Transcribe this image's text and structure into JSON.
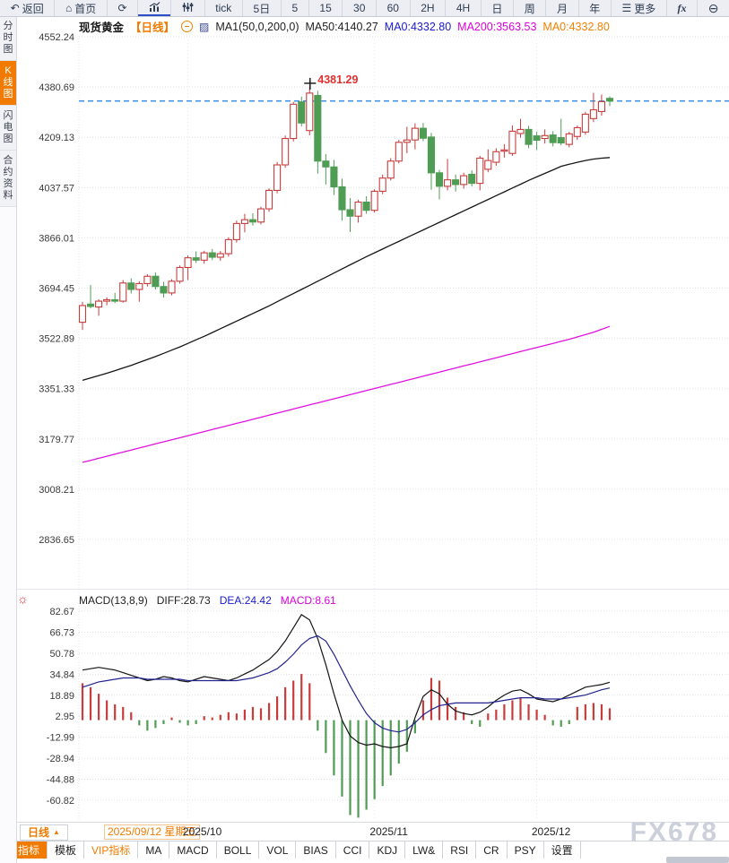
{
  "toolbar": {
    "buttons": [
      {
        "name": "back-button",
        "icon": "↶",
        "icon_name": "back-arrow-icon",
        "label": "返回"
      },
      {
        "name": "home-button",
        "icon": "⌂",
        "icon_name": "home-icon",
        "label": "首页"
      },
      {
        "name": "refresh-button",
        "icon": "⟳",
        "icon_name": "refresh-icon",
        "label": ""
      },
      {
        "name": "chart-type-button",
        "svg": "bars",
        "icon_name": "bar-chart-icon",
        "label": "",
        "active": true
      },
      {
        "name": "indicator-tool-button",
        "svg": "sliders",
        "icon_name": "sliders-icon",
        "label": ""
      },
      {
        "name": "tick-button",
        "label": "tick"
      },
      {
        "name": "period-5d-button",
        "label": "5日"
      },
      {
        "name": "period-5m-button",
        "label": "5"
      },
      {
        "name": "period-15m-button",
        "label": "15"
      },
      {
        "name": "period-30m-button",
        "label": "30"
      },
      {
        "name": "period-60m-button",
        "label": "60"
      },
      {
        "name": "period-2h-button",
        "label": "2H"
      },
      {
        "name": "period-4h-button",
        "label": "4H"
      },
      {
        "name": "period-day-button",
        "label": "日"
      },
      {
        "name": "period-week-button",
        "label": "周"
      },
      {
        "name": "period-month-button",
        "label": "月"
      },
      {
        "name": "period-year-button",
        "label": "年"
      },
      {
        "name": "more-button",
        "icon": "☰",
        "icon_name": "menu-icon",
        "label": "更多"
      },
      {
        "name": "fx-button",
        "label": "fx"
      },
      {
        "name": "zoom-out-button",
        "icon": "⊖",
        "icon_name": "zoom-out-icon",
        "label": ""
      }
    ]
  },
  "sidebar": {
    "items": [
      {
        "name": "sidebar-item-time-chart",
        "label": "分时图",
        "active": false
      },
      {
        "name": "sidebar-item-kline-chart",
        "label": "K线图",
        "active": true
      },
      {
        "name": "sidebar-item-lightning-chart",
        "label": "闪电图",
        "active": false
      },
      {
        "name": "sidebar-item-contract-info",
        "label": "合约资料",
        "active": false
      }
    ]
  },
  "legend": {
    "symbol": "现货黄金",
    "period": "【日线】",
    "ma_params": "MA1(50,0,200,0)",
    "ma50": "MA50:4140.27",
    "ma0_blue": "MA0:4332.80",
    "ma200": "MA200:3563.53",
    "ma0_orange": "MA0:4332.80"
  },
  "macd_legend": {
    "params": "MACD(13,8,9)",
    "diff": "DIFF:28.73",
    "dea": "DEA:24.42",
    "macd": "MACD:8.61"
  },
  "date_row": {
    "period_button": "日线",
    "period_arrow": "▲",
    "first_date": "2025/09/12 星期五"
  },
  "bottom_tabs": [
    {
      "name": "tab-indicator",
      "label": "指标",
      "style": "active"
    },
    {
      "name": "tab-template",
      "label": "模板",
      "style": "plain"
    },
    {
      "name": "tab-vip-indicator",
      "label": "VIP指标",
      "style": "vip"
    },
    {
      "name": "tab-ma",
      "label": "MA",
      "style": "plain"
    },
    {
      "name": "tab-macd",
      "label": "MACD",
      "style": "plain"
    },
    {
      "name": "tab-boll",
      "label": "BOLL",
      "style": "plain"
    },
    {
      "name": "tab-vol",
      "label": "VOL",
      "style": "plain"
    },
    {
      "name": "tab-bias",
      "label": "BIAS",
      "style": "plain"
    },
    {
      "name": "tab-cci",
      "label": "CCI",
      "style": "plain"
    },
    {
      "name": "tab-kdj",
      "label": "KDJ",
      "style": "plain"
    },
    {
      "name": "tab-lw",
      "label": "LW&",
      "style": "plain"
    },
    {
      "name": "tab-rsi",
      "label": "RSI",
      "style": "plain"
    },
    {
      "name": "tab-cr",
      "label": "CR",
      "style": "plain"
    },
    {
      "name": "tab-psy",
      "label": "PSY",
      "style": "plain"
    },
    {
      "name": "tab-settings",
      "label": "设置",
      "style": "plain"
    }
  ],
  "watermark": "FX678",
  "colors": {
    "up": "#c83c3c",
    "down": "#4f9d55",
    "price_line": "#1d7ce0",
    "ma50": "#151515",
    "ma200": "#e012e0",
    "diff": "#151515",
    "dea": "#23238f",
    "accent_orange": "#f07b00",
    "grid": "#dfe0e6",
    "axis_text": "#3a3a3a",
    "peak_label": "#e03030"
  },
  "chart_data": {
    "type": "candlestick",
    "symbol": "现货黄金",
    "period": "日线",
    "y_axis": {
      "labels": [
        "4552.24",
        "4380.69",
        "4209.13",
        "4037.57",
        "3866.01",
        "3694.45",
        "3522.89",
        "3351.33",
        "3179.77",
        "3008.21",
        "2836.65"
      ]
    },
    "x_axis": {
      "ticks": [
        {
          "label": "2025/10",
          "index": 14
        },
        {
          "label": "2025/11",
          "index": 37
        },
        {
          "label": "2025/12",
          "index": 57
        }
      ]
    },
    "current_price": 4332.8,
    "peak": {
      "label": "4381.29",
      "value": 4381.29,
      "index": 29
    },
    "ma": {
      "ma50_last": 4140.27,
      "ma200_last": 3563.53
    },
    "candles": [
      [
        3578,
        3648,
        3552,
        3635
      ],
      [
        3640,
        3705,
        3626,
        3632
      ],
      [
        3630,
        3656,
        3600,
        3650
      ],
      [
        3650,
        3663,
        3636,
        3655
      ],
      [
        3655,
        3678,
        3644,
        3650
      ],
      [
        3650,
        3722,
        3645,
        3712
      ],
      [
        3712,
        3728,
        3676,
        3690
      ],
      [
        3690,
        3718,
        3648,
        3710
      ],
      [
        3710,
        3742,
        3700,
        3735
      ],
      [
        3735,
        3748,
        3690,
        3700
      ],
      [
        3700,
        3716,
        3662,
        3678
      ],
      [
        3678,
        3725,
        3670,
        3718
      ],
      [
        3718,
        3772,
        3710,
        3765
      ],
      [
        3765,
        3806,
        3722,
        3798
      ],
      [
        3798,
        3820,
        3780,
        3790
      ],
      [
        3790,
        3822,
        3778,
        3815
      ],
      [
        3815,
        3828,
        3790,
        3800
      ],
      [
        3800,
        3821,
        3788,
        3812
      ],
      [
        3812,
        3868,
        3802,
        3860
      ],
      [
        3860,
        3925,
        3850,
        3915
      ],
      [
        3915,
        3948,
        3885,
        3928
      ],
      [
        3928,
        3950,
        3908,
        3920
      ],
      [
        3920,
        3972,
        3912,
        3965
      ],
      [
        3965,
        4035,
        3955,
        4028
      ],
      [
        4028,
        4125,
        4018,
        4115
      ],
      [
        4115,
        4215,
        4105,
        4205
      ],
      [
        4205,
        4330,
        4195,
        4322
      ],
      [
        4330,
        4348,
        4246,
        4258
      ],
      [
        4232,
        4381.29,
        4216,
        4360
      ],
      [
        4352,
        4368,
        4085,
        4128
      ],
      [
        4128,
        4152,
        4048,
        4108
      ],
      [
        4108,
        4132,
        4012,
        4040
      ],
      [
        4040,
        4068,
        3925,
        3962
      ],
      [
        3962,
        4002,
        3886,
        3940
      ],
      [
        3940,
        3996,
        3918,
        3988
      ],
      [
        3988,
        4008,
        3948,
        3960
      ],
      [
        3960,
        4032,
        3952,
        4025
      ],
      [
        4025,
        4082,
        4015,
        4070
      ],
      [
        4070,
        4138,
        4062,
        4128
      ],
      [
        4128,
        4200,
        4120,
        4192
      ],
      [
        4192,
        4245,
        4155,
        4200
      ],
      [
        4200,
        4257,
        4168,
        4240
      ],
      [
        4240,
        4258,
        4196,
        4206
      ],
      [
        4210,
        4224,
        4030,
        4088
      ],
      [
        4088,
        4098,
        3997,
        4042
      ],
      [
        4042,
        4135,
        4028,
        4064
      ],
      [
        4064,
        4082,
        4024,
        4048
      ],
      [
        4048,
        4088,
        4034,
        4078
      ],
      [
        4083,
        4096,
        4042,
        4052
      ],
      [
        4052,
        4146,
        4028,
        4138
      ],
      [
        4100,
        4168,
        4090,
        4130
      ],
      [
        4124,
        4172,
        4112,
        4160
      ],
      [
        4162,
        4186,
        4140,
        4166
      ],
      [
        4154,
        4250,
        4146,
        4230
      ],
      [
        4222,
        4272,
        4208,
        4236
      ],
      [
        4236,
        4248,
        4172,
        4185
      ],
      [
        4214,
        4228,
        4166,
        4199
      ],
      [
        4205,
        4236,
        4188,
        4215
      ],
      [
        4217,
        4230,
        4178,
        4191
      ],
      [
        4208,
        4272,
        4182,
        4190
      ],
      [
        4185,
        4228,
        4175,
        4221
      ],
      [
        4212,
        4249,
        4200,
        4242
      ],
      [
        4227,
        4296,
        4218,
        4288
      ],
      [
        4273,
        4361,
        4261,
        4303
      ],
      [
        4297,
        4355,
        4283,
        4331
      ],
      [
        4342,
        4349,
        4316,
        4332.8
      ]
    ],
    "ma50": [
      3380,
      3388,
      3396,
      3404,
      3413,
      3422,
      3431,
      3441,
      3451,
      3461,
      3472,
      3483,
      3494,
      3506,
      3518,
      3530,
      3543,
      3556,
      3569,
      3582,
      3595,
      3608,
      3621,
      3634,
      3648,
      3662,
      3676,
      3690,
      3704,
      3718,
      3732,
      3746,
      3760,
      3774,
      3788,
      3802,
      3815,
      3828,
      3841,
      3854,
      3867,
      3880,
      3893,
      3906,
      3919,
      3932,
      3945,
      3958,
      3971,
      3984,
      3997,
      4010,
      4023,
      4036,
      4049,
      4062,
      4074,
      4086,
      4098,
      4110,
      4117,
      4124,
      4130,
      4135,
      4138,
      4140
    ],
    "ma200": [
      3100,
      3107,
      3114,
      3121,
      3128,
      3135,
      3142,
      3149,
      3156,
      3163,
      3170,
      3177,
      3184,
      3191,
      3198,
      3205,
      3212,
      3219,
      3226,
      3233,
      3240,
      3247,
      3254,
      3261,
      3268,
      3275,
      3282,
      3289,
      3296,
      3303,
      3310,
      3317,
      3324,
      3331,
      3338,
      3345,
      3352,
      3359,
      3366,
      3373,
      3380,
      3387,
      3394,
      3401,
      3408,
      3415,
      3422,
      3429,
      3436,
      3443,
      3450,
      3457,
      3464,
      3471,
      3478,
      3485,
      3492,
      3499,
      3506,
      3513,
      3520,
      3528,
      3536,
      3544,
      3554,
      3564
    ],
    "macd": {
      "y_labels": [
        "82.67",
        "66.73",
        "50.78",
        "34.84",
        "18.89",
        "2.95",
        "-12.99",
        "-28.94",
        "-44.88",
        "-60.82"
      ],
      "diff_last": 28.73,
      "dea_last": 24.42,
      "macd_last": 8.61,
      "diff": [
        38,
        39,
        40,
        39,
        38,
        36,
        34,
        32,
        30,
        31,
        33,
        32,
        30,
        29,
        31,
        33,
        32,
        31,
        30,
        32,
        35,
        38,
        42,
        46,
        52,
        60,
        70,
        80,
        76,
        62,
        42,
        20,
        0,
        -12,
        -17,
        -19,
        -18,
        -20,
        -21,
        -20,
        -18,
        2,
        18,
        23,
        20,
        12,
        7,
        5,
        4,
        6,
        10,
        15,
        19,
        22,
        23,
        20,
        16,
        15,
        14,
        16,
        19,
        22,
        25,
        26,
        27,
        28.73
      ],
      "dea": [
        25,
        27,
        29,
        30,
        31,
        32,
        32,
        32,
        31,
        31,
        31,
        31,
        31,
        30,
        30,
        30,
        30,
        30,
        30,
        30,
        31,
        32,
        34,
        36,
        39,
        44,
        50,
        57,
        62,
        64,
        60,
        50,
        38,
        26,
        15,
        5,
        -2,
        -6,
        -8,
        -9,
        -7,
        -2,
        4,
        8,
        11,
        12,
        13,
        13,
        13,
        13,
        13,
        14,
        15,
        16,
        17,
        17,
        17,
        16,
        16,
        16,
        17,
        18,
        19,
        21,
        23,
        24.42
      ],
      "hist": [
        28,
        25,
        20,
        15,
        12,
        10,
        6,
        -4,
        -8,
        -6,
        -3,
        2,
        -2,
        -4,
        -3,
        3,
        2,
        4,
        6,
        5,
        8,
        10,
        9,
        13,
        18,
        25,
        30,
        35,
        28,
        -8,
        -25,
        -42,
        -58,
        -72,
        -74,
        -68,
        -60,
        -50,
        -42,
        -33,
        -24,
        -10,
        15,
        32,
        30,
        17,
        10,
        6,
        -3,
        -5,
        5,
        8,
        12,
        15,
        17,
        12,
        8,
        4,
        -4,
        -5,
        -3,
        10,
        12,
        13,
        12,
        9
      ]
    }
  }
}
